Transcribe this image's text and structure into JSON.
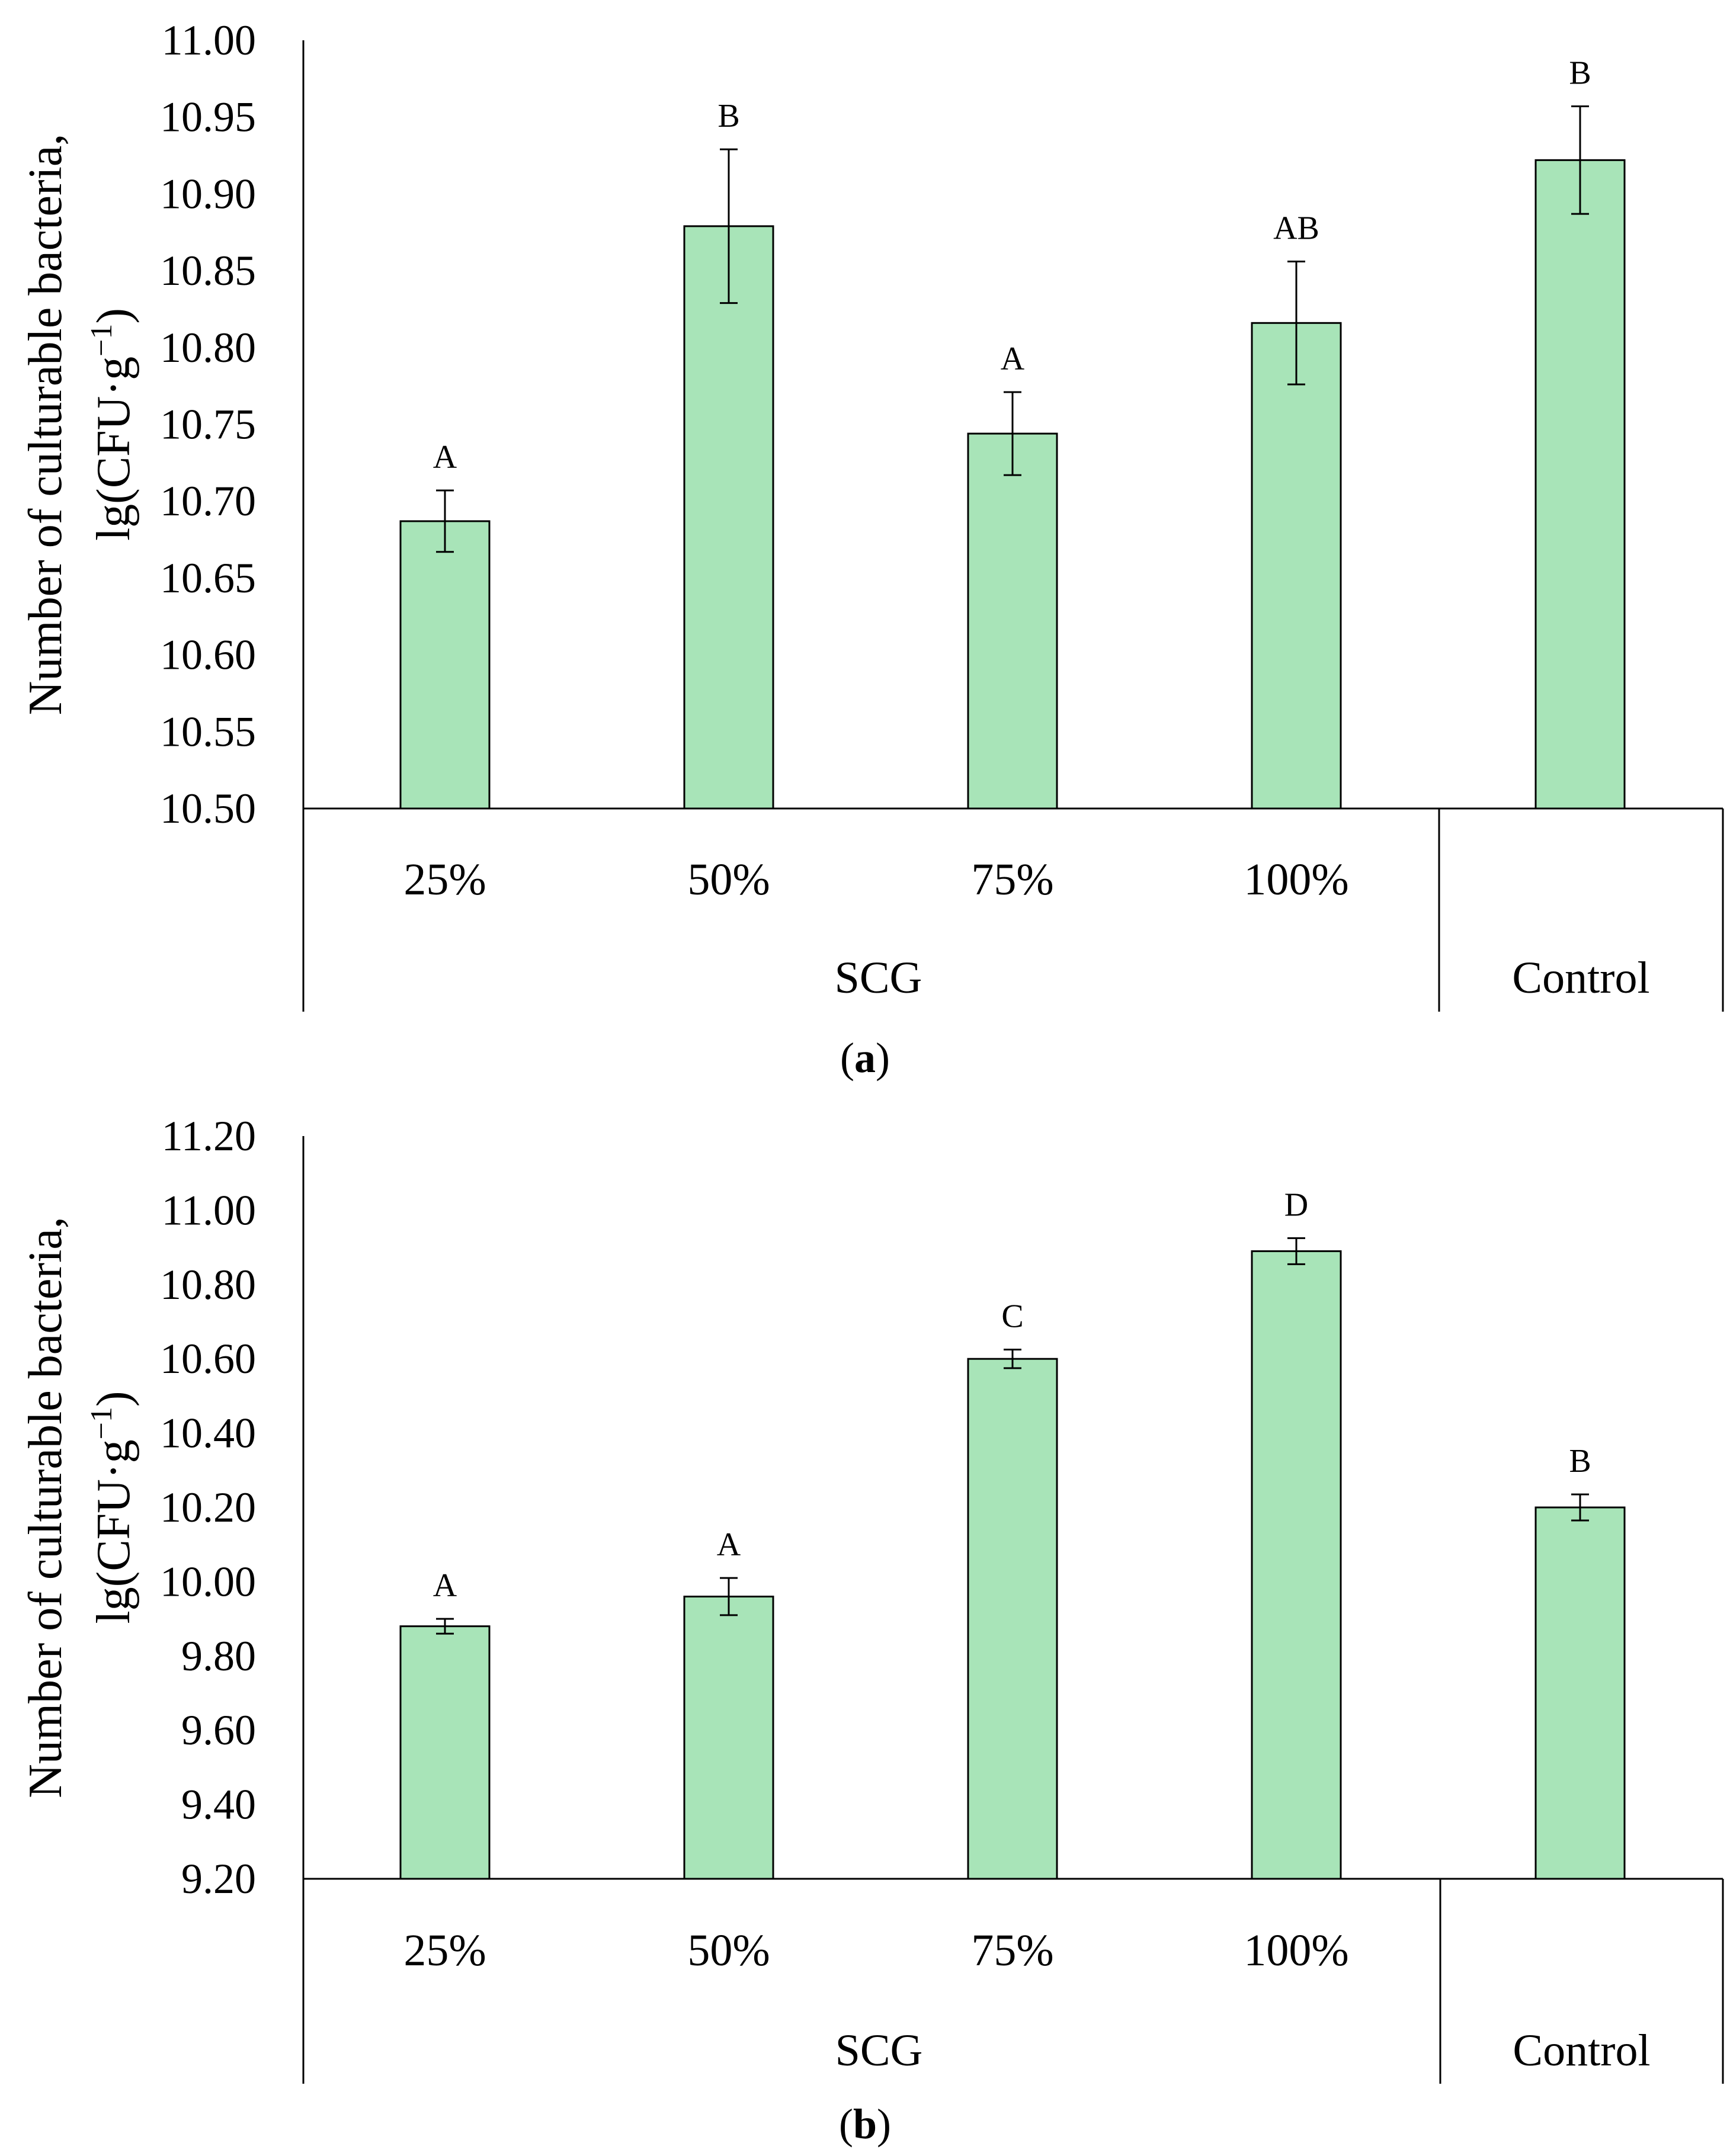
{
  "colors": {
    "bar_fill": "#a8e4b8",
    "bar_stroke": "#000000",
    "axis": "#000000"
  },
  "chart_data": [
    {
      "id": "a",
      "type": "bar",
      "panel_label": "a",
      "ylabel_line1": "Number of culturable bacteria,",
      "ylabel_line2_prefix": "lg(CFU·g",
      "ylabel_line2_sup": "−1",
      "ylabel_line2_suffix": ")",
      "ylim": [
        10.5,
        11.0
      ],
      "yticks": [
        "10.50",
        "10.55",
        "10.60",
        "10.65",
        "10.70",
        "10.75",
        "10.80",
        "10.85",
        "10.90",
        "10.95",
        "11.00"
      ],
      "categories": [
        "25%",
        "50%",
        "75%",
        "100%",
        ""
      ],
      "groups": [
        {
          "label": "SCG",
          "span": 4
        },
        {
          "label": "Control",
          "span": 1
        }
      ],
      "values": [
        10.687,
        10.879,
        10.744,
        10.816,
        10.922
      ],
      "errors": [
        0.02,
        0.05,
        0.027,
        0.04,
        0.035
      ],
      "letters": [
        "A",
        "B",
        "A",
        "AB",
        "B"
      ]
    },
    {
      "id": "b",
      "type": "bar",
      "panel_label": "b",
      "ylabel_line1": "Number of culturable bacteria,",
      "ylabel_line2_prefix": "lg(CFU·g",
      "ylabel_line2_sup": "−1",
      "ylabel_line2_suffix": ")",
      "ylim": [
        9.2,
        11.2
      ],
      "yticks": [
        "9.20",
        "9.40",
        "9.60",
        "9.80",
        "10.00",
        "10.20",
        "10.40",
        "10.60",
        "10.80",
        "11.00",
        "11.20"
      ],
      "categories": [
        "25%",
        "50%",
        "75%",
        "100%",
        ""
      ],
      "groups": [
        {
          "label": "SCG",
          "span": 4
        },
        {
          "label": "Control",
          "span": 1
        }
      ],
      "values": [
        9.88,
        9.96,
        10.6,
        10.89,
        10.2
      ],
      "errors": [
        0.02,
        0.05,
        0.025,
        0.035,
        0.035
      ],
      "letters": [
        "A",
        "A",
        "C",
        "D",
        "B"
      ]
    }
  ]
}
